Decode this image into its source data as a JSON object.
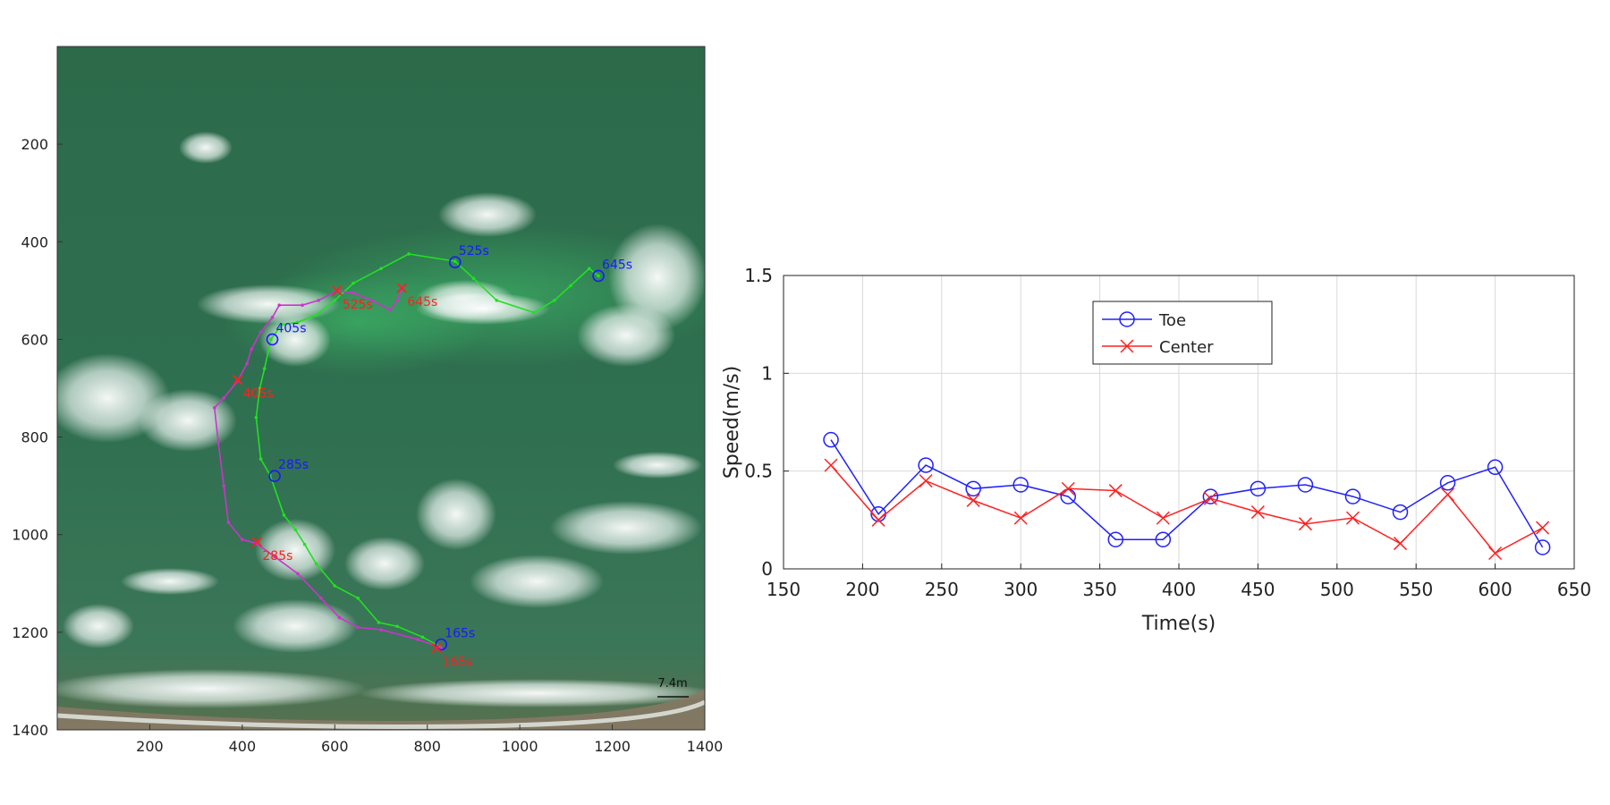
{
  "chart_data": [
    {
      "type": "scatter",
      "title": "",
      "xlabel": "",
      "ylabel": "",
      "xlim": [
        0,
        1400
      ],
      "ylim": [
        0,
        1400
      ],
      "y_reversed": true,
      "grid": false,
      "background": "aerial-photo",
      "xticks": [
        200,
        400,
        600,
        800,
        1000,
        1200,
        1400
      ],
      "yticks": [
        200,
        400,
        600,
        800,
        1000,
        1200,
        1400
      ],
      "scale_bar_label": "7.4m",
      "series": [
        {
          "color": "#22e022",
          "points": [
            {
              "x": 825,
              "y": 1228
            },
            {
              "x": 790,
              "y": 1210
            },
            {
              "x": 735,
              "y": 1188
            },
            {
              "x": 695,
              "y": 1180
            },
            {
              "x": 650,
              "y": 1130
            },
            {
              "x": 600,
              "y": 1105
            },
            {
              "x": 560,
              "y": 1060
            },
            {
              "x": 535,
              "y": 1020
            },
            {
              "x": 515,
              "y": 990
            },
            {
              "x": 490,
              "y": 960
            },
            {
              "x": 460,
              "y": 878
            },
            {
              "x": 440,
              "y": 845
            },
            {
              "x": 430,
              "y": 760
            },
            {
              "x": 438,
              "y": 700
            },
            {
              "x": 448,
              "y": 660
            },
            {
              "x": 462,
              "y": 600
            },
            {
              "x": 485,
              "y": 570
            },
            {
              "x": 520,
              "y": 565
            },
            {
              "x": 560,
              "y": 550
            },
            {
              "x": 600,
              "y": 520
            },
            {
              "x": 640,
              "y": 485
            },
            {
              "x": 700,
              "y": 455
            },
            {
              "x": 760,
              "y": 425
            },
            {
              "x": 860,
              "y": 440
            },
            {
              "x": 900,
              "y": 475
            },
            {
              "x": 950,
              "y": 520
            },
            {
              "x": 1030,
              "y": 545
            },
            {
              "x": 1075,
              "y": 520
            },
            {
              "x": 1110,
              "y": 490
            },
            {
              "x": 1150,
              "y": 455
            },
            {
              "x": 1170,
              "y": 470
            }
          ]
        },
        {
          "color": "#cc33cc",
          "points": [
            {
              "x": 830,
              "y": 1232
            },
            {
              "x": 780,
              "y": 1215
            },
            {
              "x": 700,
              "y": 1195
            },
            {
              "x": 650,
              "y": 1190
            },
            {
              "x": 610,
              "y": 1170
            },
            {
              "x": 570,
              "y": 1130
            },
            {
              "x": 520,
              "y": 1080
            },
            {
              "x": 470,
              "y": 1045
            },
            {
              "x": 430,
              "y": 1018
            },
            {
              "x": 400,
              "y": 1010
            },
            {
              "x": 370,
              "y": 975
            },
            {
              "x": 360,
              "y": 900
            },
            {
              "x": 348,
              "y": 810
            },
            {
              "x": 340,
              "y": 740
            },
            {
              "x": 360,
              "y": 720
            },
            {
              "x": 390,
              "y": 685
            },
            {
              "x": 410,
              "y": 650
            },
            {
              "x": 420,
              "y": 620
            },
            {
              "x": 440,
              "y": 585
            },
            {
              "x": 465,
              "y": 555
            },
            {
              "x": 480,
              "y": 530
            },
            {
              "x": 530,
              "y": 530
            },
            {
              "x": 565,
              "y": 520
            },
            {
              "x": 605,
              "y": 500
            },
            {
              "x": 640,
              "y": 505
            },
            {
              "x": 680,
              "y": 520
            },
            {
              "x": 720,
              "y": 540
            },
            {
              "x": 735,
              "y": 520
            },
            {
              "x": 745,
              "y": 495
            }
          ]
        }
      ],
      "toe_markers": [
        {
          "x": 830,
          "y": 1225,
          "label": "165s"
        },
        {
          "x": 470,
          "y": 880,
          "label": "285s"
        },
        {
          "x": 465,
          "y": 600,
          "label": "405s"
        },
        {
          "x": 860,
          "y": 442,
          "label": "525s"
        },
        {
          "x": 1170,
          "y": 470,
          "label": "645s"
        }
      ],
      "center_markers": [
        {
          "x": 820,
          "y": 1232,
          "label": "165s"
        },
        {
          "x": 432,
          "y": 1015,
          "label": "285s"
        },
        {
          "x": 390,
          "y": 683,
          "label": "405s"
        },
        {
          "x": 605,
          "y": 500,
          "label": "525s"
        },
        {
          "x": 745,
          "y": 495,
          "label": "645s"
        }
      ],
      "toe_color": "#1a1aff",
      "center_color": "#ff2020"
    },
    {
      "type": "line",
      "title": "",
      "xlabel": "Time(s)",
      "ylabel": "Speed(m/s)",
      "xlim": [
        150,
        650
      ],
      "ylim": [
        0,
        1.5
      ],
      "xticks": [
        150,
        200,
        250,
        300,
        350,
        400,
        450,
        500,
        550,
        600,
        650
      ],
      "yticks": [
        0,
        0.5,
        1,
        1.5
      ],
      "ytick_labels": [
        "0",
        "0.5",
        "1",
        "1.5"
      ],
      "grid": true,
      "legend_position": "upper-left-inside",
      "x": [
        180,
        210,
        240,
        270,
        300,
        330,
        360,
        390,
        420,
        450,
        480,
        510,
        540,
        570,
        600,
        630
      ],
      "series": [
        {
          "name": "Toe",
          "color": "#2020ff",
          "marker": "circle",
          "values": [
            0.66,
            0.28,
            0.53,
            0.41,
            0.43,
            0.37,
            0.15,
            0.15,
            0.37,
            0.41,
            0.43,
            0.37,
            0.29,
            0.44,
            0.52,
            0.11
          ]
        },
        {
          "name": "Center",
          "color": "#ff2020",
          "marker": "x",
          "values": [
            0.53,
            0.25,
            0.45,
            0.35,
            0.26,
            0.41,
            0.4,
            0.26,
            0.36,
            0.29,
            0.23,
            0.26,
            0.13,
            0.38,
            0.08,
            0.21
          ]
        }
      ]
    }
  ]
}
